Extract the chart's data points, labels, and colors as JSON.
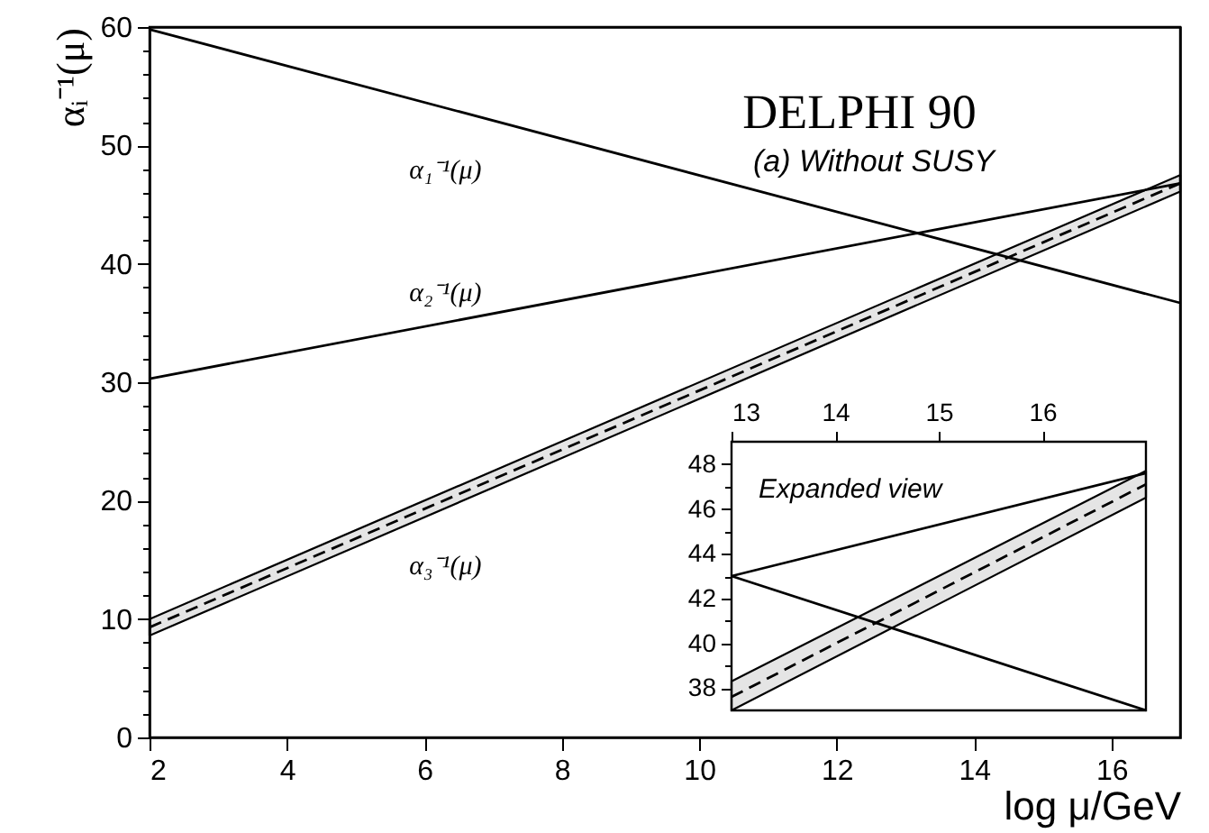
{
  "chart_data": [
    {
      "type": "line",
      "title": "DELPHI 90",
      "subtitle": "(a) Without SUSY",
      "xlabel": "log μ/GeV",
      "ylabel": "αᵢ⁻¹(μ)",
      "x": [
        2,
        17
      ],
      "series": [
        {
          "name": "α₁⁻¹(μ)",
          "color": "#000000",
          "values": [
            59.8,
            36.7
          ]
        },
        {
          "name": "α₂⁻¹(μ)",
          "color": "#000000",
          "values": [
            30.3,
            46.8
          ]
        },
        {
          "name": "α₃⁻¹(μ)",
          "color": "#000000",
          "values": [
            9.3,
            46.8
          ],
          "lower": [
            8.6,
            46.1
          ],
          "upper": [
            10.0,
            47.5
          ],
          "line_style": "dashed"
        }
      ],
      "xlim": [
        2,
        17
      ],
      "ylim": [
        0,
        60
      ],
      "xticks": [
        2,
        4,
        6,
        8,
        10,
        12,
        14,
        16
      ],
      "yticks": [
        0,
        {
          "value": 2,
          "label": null
        },
        {
          "value": 4,
          "label": null
        },
        {
          "value": 6,
          "label": null
        },
        {
          "value": 8,
          "label": null
        },
        10,
        {
          "value": 12,
          "label": null
        },
        {
          "value": 14,
          "label": null
        },
        {
          "value": 16,
          "label": null
        },
        {
          "value": 18,
          "label": null
        },
        20,
        {
          "value": 22,
          "label": null
        },
        {
          "value": 24,
          "label": null
        },
        {
          "value": 26,
          "label": null
        },
        {
          "value": 28,
          "label": null
        },
        30,
        {
          "value": 32,
          "label": null
        },
        {
          "value": 34,
          "label": null
        },
        {
          "value": 36,
          "label": null
        },
        {
          "value": 38,
          "label": null
        },
        40,
        {
          "value": 42,
          "label": null
        },
        {
          "value": 44,
          "label": null
        },
        {
          "value": 46,
          "label": null
        },
        {
          "value": 48,
          "label": null
        },
        50,
        {
          "value": 52,
          "label": null
        },
        {
          "value": 54,
          "label": null
        },
        {
          "value": 56,
          "label": null
        },
        {
          "value": 58,
          "label": null
        },
        60
      ]
    },
    {
      "type": "line",
      "title": "Expanded view",
      "x": [
        13,
        17
      ],
      "series": [
        {
          "color": "#000000",
          "values": [
            43.0,
            37.0
          ]
        },
        {
          "color": "#000000",
          "values": [
            43.0,
            47.6
          ]
        },
        {
          "color": "#000000",
          "values": [
            37.6,
            47.1
          ],
          "lower": [
            37.0,
            46.5
          ],
          "upper": [
            38.3,
            47.7
          ],
          "line_style": "dashed"
        }
      ],
      "xlim": [
        13,
        17
      ],
      "ylim": [
        37,
        49
      ],
      "xticks": [
        13,
        14,
        15,
        16
      ],
      "yticks": [
        38,
        {
          "value": 39,
          "label": null
        },
        40,
        {
          "value": 41,
          "label": null
        },
        42,
        {
          "value": 43,
          "label": null
        },
        44,
        {
          "value": 45,
          "label": null
        },
        46,
        {
          "value": 47,
          "label": null
        },
        48
      ]
    }
  ]
}
